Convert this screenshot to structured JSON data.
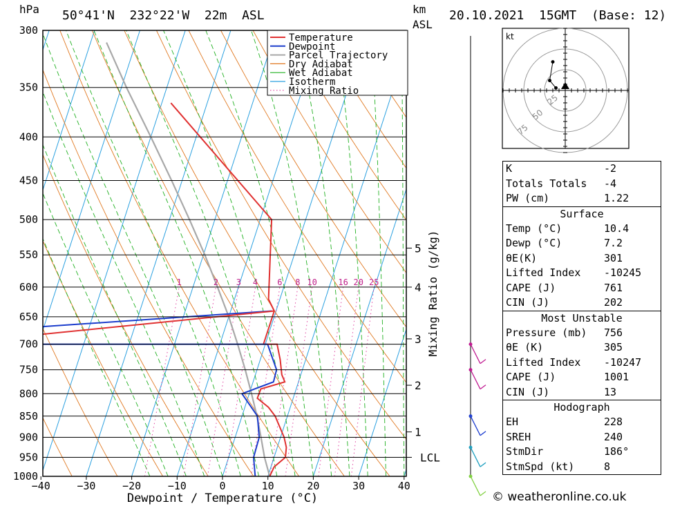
{
  "header": {
    "hpa_label": "hPa",
    "location": "50°41'N  232°22'W  22m  ASL",
    "km_label": "km",
    "asl_label": "ASL",
    "datetime": "20.10.2021  15GMT  (Base: 12)"
  },
  "chart_data": {
    "type": "skew-t log-p sounding diagram",
    "pressure_levels": [
      300,
      350,
      400,
      450,
      500,
      550,
      600,
      650,
      700,
      750,
      800,
      850,
      900,
      950,
      1000
    ],
    "x_ticks": [
      -40,
      -30,
      -20,
      -10,
      0,
      10,
      20,
      30,
      40
    ],
    "xlabel": "Dewpoint / Temperature (°C)",
    "ylabel_right": "Mixing Ratio (g/kg)",
    "legend": [
      "Temperature",
      "Dewpoint",
      "Parcel Trajectory",
      "Dry Adiabat",
      "Wet Adiabat",
      "Isotherm",
      "Mixing Ratio"
    ],
    "colors": {
      "temperature": "#e03030",
      "dewpoint": "#1a3ccc",
      "parcel": "#a8a8a8",
      "dry_adiabat": "#e07820",
      "wet_adiabat": "#20b020",
      "isotherm": "#2aa0e0",
      "mixing_ratio": "#e040a0"
    },
    "mixing_ratio_labels": [
      "1",
      "2",
      "3",
      "4",
      "6",
      "8",
      "10",
      "16",
      "20",
      "25"
    ],
    "km_ticks": [
      {
        "label": "5",
        "p": 540
      },
      {
        "label": "4",
        "p": 600
      },
      {
        "label": "3",
        "p": 690
      },
      {
        "label": "2",
        "p": 782
      },
      {
        "label": "1",
        "p": 887
      }
    ],
    "lcl_label": "LCL",
    "lcl_pressure": 950,
    "temperature_profile": [
      {
        "p": 1000,
        "t": 10.4
      },
      {
        "p": 975,
        "t": 10.7
      },
      {
        "p": 950,
        "t": 12.5
      },
      {
        "p": 925,
        "t": 12.0
      },
      {
        "p": 900,
        "t": 10.8
      },
      {
        "p": 850,
        "t": 7.3
      },
      {
        "p": 830,
        "t": 5.2
      },
      {
        "p": 810,
        "t": 2.1
      },
      {
        "p": 790,
        "t": 2.2
      },
      {
        "p": 775,
        "t": 7.0
      },
      {
        "p": 760,
        "t": 5.8
      },
      {
        "p": 730,
        "t": 4.4
      },
      {
        "p": 700,
        "t": 2.6
      },
      {
        "p": 700,
        "t": -0.4
      },
      {
        "p": 640,
        "t": -0.4
      },
      {
        "p": 620,
        "t": -2.5
      },
      {
        "p": 500,
        "t": -7.5
      },
      {
        "p": 365,
        "t": -38.0
      }
    ],
    "dewpoint_profile": [
      {
        "p": 1000,
        "t": 7.2
      },
      {
        "p": 950,
        "t": 5.5
      },
      {
        "p": 900,
        "t": 5.3
      },
      {
        "p": 850,
        "t": 3.4
      },
      {
        "p": 800,
        "t": -1.6
      },
      {
        "p": 775,
        "t": 4.5
      },
      {
        "p": 750,
        "t": 4.3
      },
      {
        "p": 700,
        "t": 0.5
      }
    ],
    "parcel_trajectory": [
      {
        "p": 1000,
        "t": 10.4
      },
      {
        "p": 950,
        "t": 7.9
      },
      {
        "p": 900,
        "t": 5.7
      },
      {
        "p": 850,
        "t": 3.3
      },
      {
        "p": 800,
        "t": 0.5
      },
      {
        "p": 750,
        "t": -2.6
      },
      {
        "p": 700,
        "t": -6.1
      },
      {
        "p": 650,
        "t": -10.0
      },
      {
        "p": 600,
        "t": -14.6
      },
      {
        "p": 550,
        "t": -19.7
      },
      {
        "p": 500,
        "t": -25.6
      },
      {
        "p": 450,
        "t": -32.3
      },
      {
        "p": 400,
        "t": -40.0
      },
      {
        "p": 350,
        "t": -48.9
      },
      {
        "p": 310,
        "t": -56.5
      }
    ],
    "hodograph": {
      "unit_label": "kt",
      "ring_labels": [
        "25",
        "50",
        "75"
      ],
      "points_kt": [
        [
          -1.5,
          1.0
        ],
        [
          -2.5,
          4.0
        ],
        [
          -2.0,
          11.5
        ]
      ]
    },
    "wind_barbs": [
      {
        "p": 700,
        "color": "#c01890"
      },
      {
        "p": 750,
        "color": "#c01890"
      },
      {
        "p": 850,
        "color": "#2040d0"
      },
      {
        "p": 925,
        "color": "#20a0c0"
      },
      {
        "p": 1000,
        "color": "#80d040"
      }
    ]
  },
  "indices": {
    "k_label": "K",
    "k_value": "-2",
    "tt_label": "Totals Totals",
    "tt_value": "-4",
    "pw_label": "PW (cm)",
    "pw_value": "1.22"
  },
  "surface": {
    "title": "Surface",
    "rows": [
      {
        "label": "Temp (°C)",
        "value": "10.4"
      },
      {
        "label": "Dewp (°C)",
        "value": "7.2"
      },
      {
        "label": "θE(K)",
        "value": "301"
      },
      {
        "label": "Lifted Index",
        "value": "-10245"
      },
      {
        "label": "CAPE (J)",
        "value": "761"
      },
      {
        "label": "CIN (J)",
        "value": "202"
      }
    ]
  },
  "most_unstable": {
    "title": "Most Unstable",
    "rows": [
      {
        "label": "Pressure (mb)",
        "value": "756"
      },
      {
        "label": "θE (K)",
        "value": "305"
      },
      {
        "label": "Lifted Index",
        "value": "-10247"
      },
      {
        "label": "CAPE (J)",
        "value": "1001"
      },
      {
        "label": "CIN (J)",
        "value": "13"
      }
    ]
  },
  "hodograph_table": {
    "title": "Hodograph",
    "rows": [
      {
        "label": "EH",
        "value": "228"
      },
      {
        "label": "SREH",
        "value": "240"
      },
      {
        "label": "StmDir",
        "value": "186°"
      },
      {
        "label": "StmSpd (kt)",
        "value": "8"
      }
    ]
  },
  "copyright": "© weatheronline.co.uk"
}
